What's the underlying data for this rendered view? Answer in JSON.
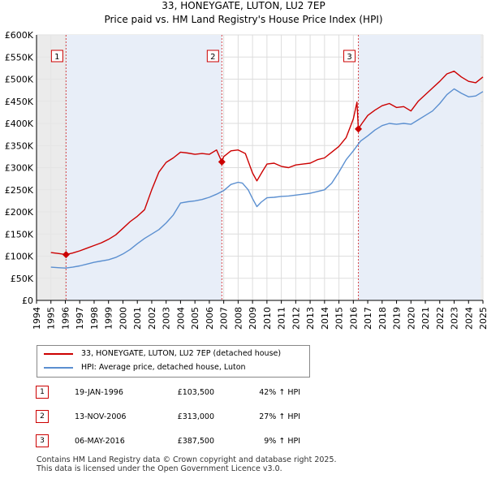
{
  "header": {
    "title": "33, HONEYGATE, LUTON, LU2 7EP",
    "subtitle": "Price paid vs. HM Land Registry's House Price Index (HPI)"
  },
  "colors": {
    "property": "#cc0000",
    "hpi": "#5b8fd0",
    "shade": "#e8eef8",
    "grid": "#dddddd",
    "marker_box": "#cc0000"
  },
  "legend": {
    "property_label": "33, HONEYGATE, LUTON, LU2 7EP (detached house)",
    "hpi_label": "HPI: Average price, detached house, Luton"
  },
  "sales": [
    {
      "num": "1",
      "date": "19-JAN-1996",
      "price": "£103,500",
      "hpi": "42% ↑ HPI"
    },
    {
      "num": "2",
      "date": "13-NOV-2006",
      "price": "£313,000",
      "hpi": "27% ↑ HPI"
    },
    {
      "num": "3",
      "date": "06-MAY-2016",
      "price": "£387,500",
      "hpi": "9% ↑ HPI"
    }
  ],
  "footer": {
    "line1": "Contains HM Land Registry data © Crown copyright and database right 2025.",
    "line2": "This data is licensed under the Open Government Licence v3.0."
  },
  "chart_data": {
    "type": "line",
    "title": "33, HONEYGATE, LUTON, LU2 7EP",
    "subtitle": "Price paid vs. HM Land Registry's House Price Index (HPI)",
    "xlabel": "",
    "ylabel": "",
    "xlim": [
      1994,
      2025
    ],
    "ylim": [
      0,
      600000
    ],
    "x_ticks": [
      "1994",
      "1995",
      "1996",
      "1997",
      "1998",
      "1999",
      "2000",
      "2001",
      "2002",
      "2003",
      "2004",
      "2005",
      "2006",
      "2007",
      "2008",
      "2009",
      "2010",
      "2011",
      "2012",
      "2013",
      "2014",
      "2015",
      "2016",
      "2017",
      "2018",
      "2019",
      "2020",
      "2021",
      "2022",
      "2023",
      "2024",
      "2025"
    ],
    "y_ticks": [
      {
        "value": 0,
        "label": "£0"
      },
      {
        "value": 50000,
        "label": "£50K"
      },
      {
        "value": 100000,
        "label": "£100K"
      },
      {
        "value": 150000,
        "label": "£150K"
      },
      {
        "value": 200000,
        "label": "£200K"
      },
      {
        "value": 250000,
        "label": "£250K"
      },
      {
        "value": 300000,
        "label": "£300K"
      },
      {
        "value": 350000,
        "label": "£350K"
      },
      {
        "value": 400000,
        "label": "£400K"
      },
      {
        "value": 450000,
        "label": "£450K"
      },
      {
        "value": 500000,
        "label": "£500K"
      },
      {
        "value": 550000,
        "label": "£550K"
      },
      {
        "value": 600000,
        "label": "£600K"
      }
    ],
    "grid": true,
    "legend_position": "bottom-left",
    "sale_markers": [
      {
        "label": "1",
        "x": 1996.05,
        "y": 103500
      },
      {
        "label": "2",
        "x": 2006.87,
        "y": 313000
      },
      {
        "label": "3",
        "x": 2016.35,
        "y": 387500
      }
    ],
    "series": [
      {
        "name": "33, HONEYGATE, LUTON, LU2 7EP (detached house)",
        "color": "#cc0000",
        "x": [
          1995.0,
          1995.5,
          1996.05,
          1996.5,
          1997.0,
          1997.5,
          1998.0,
          1998.5,
          1999.0,
          1999.5,
          2000.0,
          2000.5,
          2001.0,
          2001.5,
          2002.0,
          2002.5,
          2003.0,
          2003.5,
          2004.0,
          2004.5,
          2005.0,
          2005.5,
          2006.0,
          2006.5,
          2006.87,
          2007.0,
          2007.5,
          2008.0,
          2008.5,
          2009.0,
          2009.3,
          2009.7,
          2010.0,
          2010.5,
          2011.0,
          2011.5,
          2012.0,
          2012.5,
          2013.0,
          2013.5,
          2014.0,
          2014.5,
          2015.0,
          2015.5,
          2016.0,
          2016.25,
          2016.35,
          2016.6,
          2017.0,
          2017.5,
          2018.0,
          2018.5,
          2019.0,
          2019.5,
          2020.0,
          2020.5,
          2021.0,
          2021.5,
          2022.0,
          2022.5,
          2023.0,
          2023.5,
          2024.0,
          2024.5,
          2025.0
        ],
        "y": [
          108000,
          106000,
          103500,
          107000,
          112000,
          118000,
          124000,
          130000,
          138000,
          148000,
          163000,
          178000,
          190000,
          205000,
          250000,
          290000,
          312000,
          322000,
          335000,
          333000,
          330000,
          332000,
          330000,
          340000,
          313000,
          325000,
          338000,
          340000,
          332000,
          288000,
          270000,
          292000,
          308000,
          310000,
          303000,
          300000,
          306000,
          308000,
          310000,
          318000,
          322000,
          335000,
          348000,
          368000,
          410000,
          448000,
          387500,
          400000,
          418000,
          430000,
          440000,
          445000,
          436000,
          438000,
          428000,
          450000,
          465000,
          480000,
          495000,
          512000,
          518000,
          505000,
          495000,
          492000,
          505000
        ]
      },
      {
        "name": "HPI: Average price, detached house, Luton",
        "color": "#5b8fd0",
        "x": [
          1995.0,
          1995.5,
          1996.0,
          1996.5,
          1997.0,
          1997.5,
          1998.0,
          1998.5,
          1999.0,
          1999.5,
          2000.0,
          2000.5,
          2001.0,
          2001.5,
          2002.0,
          2002.5,
          2003.0,
          2003.5,
          2004.0,
          2004.5,
          2005.0,
          2005.5,
          2006.0,
          2006.5,
          2007.0,
          2007.5,
          2008.0,
          2008.3,
          2008.7,
          2009.0,
          2009.3,
          2009.6,
          2010.0,
          2010.5,
          2011.0,
          2011.5,
          2012.0,
          2012.5,
          2013.0,
          2013.5,
          2014.0,
          2014.5,
          2015.0,
          2015.5,
          2016.0,
          2016.5,
          2017.0,
          2017.5,
          2018.0,
          2018.5,
          2019.0,
          2019.5,
          2020.0,
          2020.5,
          2021.0,
          2021.5,
          2022.0,
          2022.5,
          2023.0,
          2023.5,
          2024.0,
          2024.5,
          2025.0
        ],
        "y": [
          75000,
          74000,
          73000,
          75000,
          78000,
          82000,
          86000,
          89000,
          92000,
          97000,
          105000,
          115000,
          128000,
          140000,
          150000,
          160000,
          175000,
          193000,
          220000,
          223000,
          225000,
          228000,
          233000,
          240000,
          248000,
          262000,
          267000,
          265000,
          250000,
          230000,
          212000,
          222000,
          232000,
          233000,
          235000,
          236000,
          238000,
          240000,
          242000,
          246000,
          250000,
          265000,
          290000,
          318000,
          338000,
          360000,
          372000,
          385000,
          395000,
          400000,
          398000,
          400000,
          398000,
          408000,
          418000,
          428000,
          445000,
          465000,
          478000,
          468000,
          460000,
          462000,
          472000
        ]
      }
    ]
  }
}
